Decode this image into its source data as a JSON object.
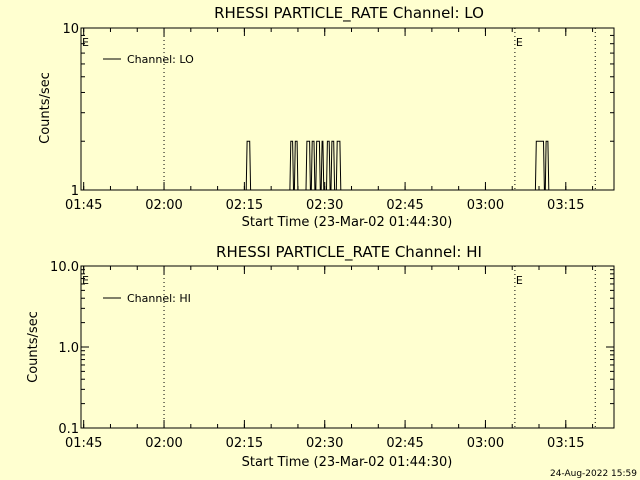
{
  "footer": {
    "timestamp": "24-Aug-2022 15:59"
  },
  "colors": {
    "background": "#ffffd0",
    "foreground": "#000000"
  },
  "chart_data": [
    {
      "type": "line",
      "title": "RHESSI PARTICLE_RATE Channel: LO",
      "xlabel": "Start Time (23-Mar-02 01:44:30)",
      "ylabel": "Counts/sec",
      "y_scale": "log",
      "ylim": [
        1,
        10
      ],
      "xlim": [
        "01:44:30",
        "03:24:00"
      ],
      "x_ticks": [
        "01:45",
        "02:00",
        "02:15",
        "02:30",
        "02:45",
        "03:00",
        "03:15"
      ],
      "y_ticks": [
        "1",
        "10"
      ],
      "legend": {
        "position": "top-left",
        "entries": [
          "Channel: LO"
        ]
      },
      "event_markers": [
        {
          "time": "01:44:30",
          "label": "E",
          "dotted_line": false
        },
        {
          "time": "02:00:00",
          "label": "",
          "dotted_line": true
        },
        {
          "time": "03:05:30",
          "label": "E",
          "dotted_line": true
        },
        {
          "time": "03:20:30",
          "label": "",
          "dotted_line": true
        }
      ],
      "series": [
        {
          "name": "Channel: LO",
          "x": [
            "02:15:20",
            "02:15:30",
            "02:16:00",
            "02:16:10",
            "02:23:30",
            "02:23:40",
            "02:24:00",
            "02:24:10",
            "02:24:20",
            "02:24:30",
            "02:24:50",
            "02:25:00",
            "02:26:30",
            "02:26:40",
            "02:27:10",
            "02:27:20",
            "02:27:30",
            "02:27:40",
            "02:28:00",
            "02:28:10",
            "02:28:20",
            "02:28:30",
            "02:29:00",
            "02:29:10",
            "02:29:20",
            "02:29:30",
            "02:29:40",
            "02:29:50",
            "02:30:20",
            "02:30:30",
            "02:30:50",
            "02:31:00",
            "02:31:10",
            "02:31:20",
            "02:31:40",
            "02:31:50",
            "02:32:10",
            "02:32:20",
            "02:32:50",
            "02:33:00",
            "03:09:20",
            "03:09:30",
            "03:10:50",
            "03:11:00",
            "03:11:10",
            "03:11:20",
            "03:11:40",
            "03:11:50"
          ],
          "y": [
            1,
            2,
            2,
            1,
            1,
            2,
            2,
            1,
            1,
            2,
            2,
            1,
            1,
            2,
            2,
            1,
            1,
            2,
            2,
            1,
            1,
            2,
            2,
            1,
            1,
            2,
            2,
            1,
            1,
            2,
            2,
            1,
            1,
            2,
            2,
            1,
            1,
            2,
            2,
            1,
            1,
            2,
            2,
            1,
            1,
            2,
            2,
            1
          ]
        }
      ]
    },
    {
      "type": "line",
      "title": "RHESSI PARTICLE_RATE Channel: HI",
      "xlabel": "Start Time (23-Mar-02 01:44:30)",
      "ylabel": "Counts/sec",
      "y_scale": "log",
      "ylim": [
        0.1,
        10
      ],
      "xlim": [
        "01:44:30",
        "03:24:00"
      ],
      "x_ticks": [
        "01:45",
        "02:00",
        "02:15",
        "02:30",
        "02:45",
        "03:00",
        "03:15"
      ],
      "y_ticks": [
        "0.1",
        "1.0",
        "10.0"
      ],
      "legend": {
        "position": "top-left",
        "entries": [
          "Channel: HI"
        ]
      },
      "event_markers": [
        {
          "time": "01:44:30",
          "label": "E",
          "dotted_line": false
        },
        {
          "time": "02:00:00",
          "label": "",
          "dotted_line": true
        },
        {
          "time": "03:05:30",
          "label": "E",
          "dotted_line": true
        },
        {
          "time": "03:20:30",
          "label": "",
          "dotted_line": true
        }
      ],
      "series": [
        {
          "name": "Channel: HI",
          "x": [],
          "y": []
        }
      ]
    }
  ]
}
